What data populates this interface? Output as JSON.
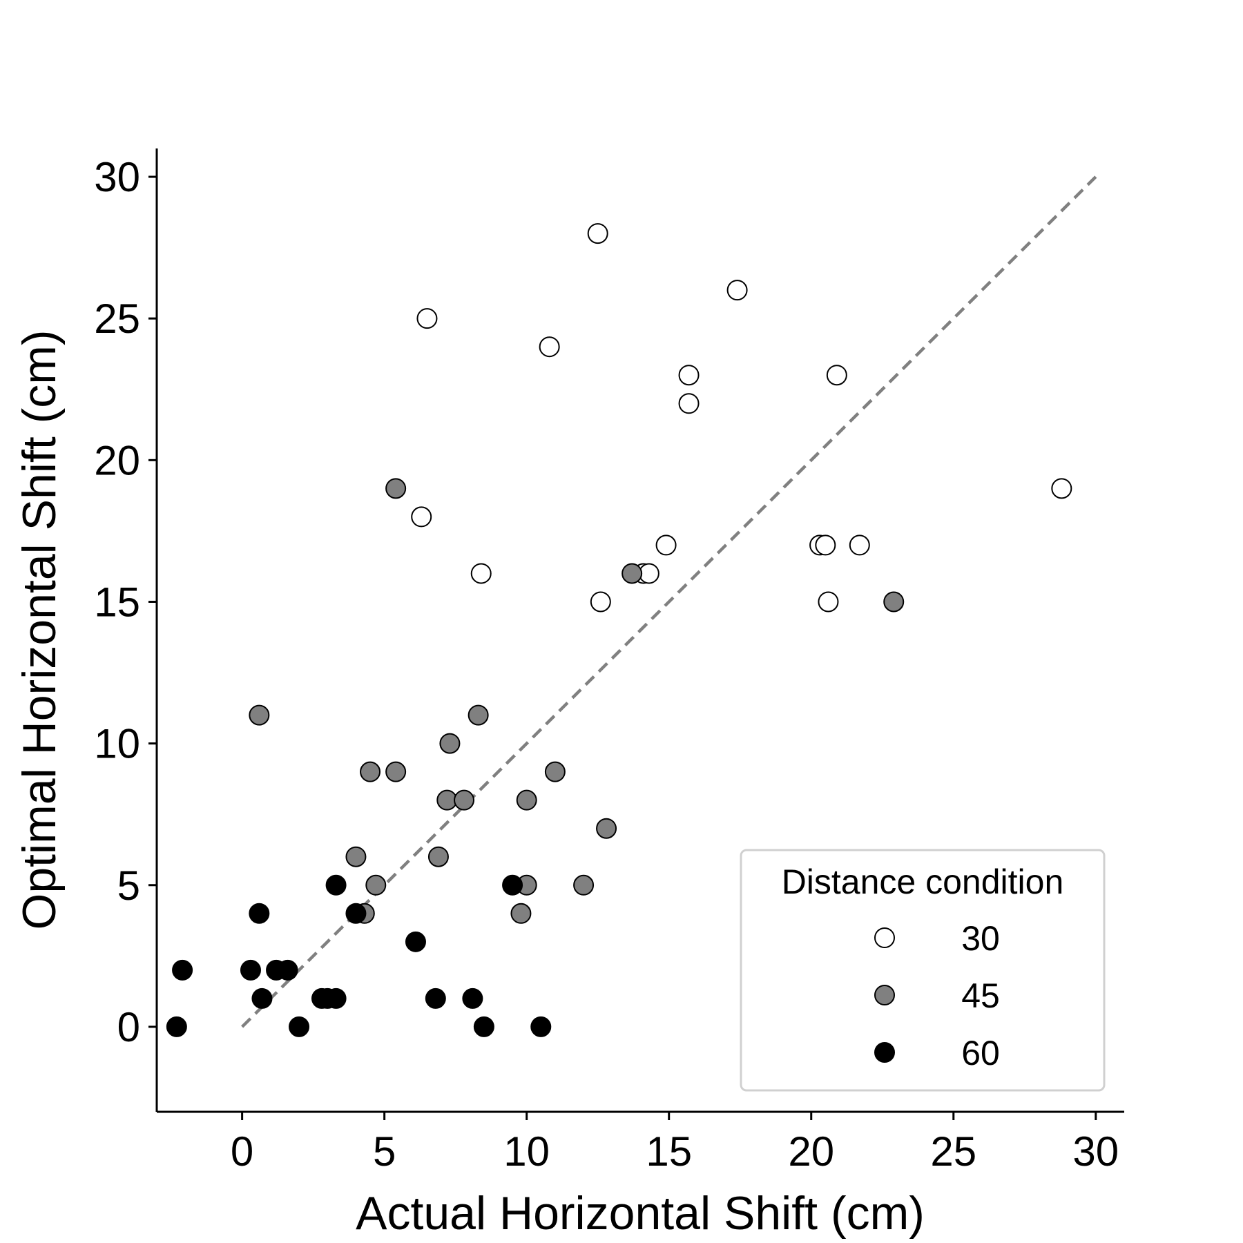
{
  "chart_data": {
    "type": "scatter",
    "title": "",
    "xlabel": "Actual Horizontal Shift (cm)",
    "ylabel": "Optimal Horizontal Shift (cm)",
    "xlim": [
      -3,
      31
    ],
    "ylim": [
      -3,
      31
    ],
    "xticks": [
      0,
      5,
      10,
      15,
      20,
      25,
      30
    ],
    "yticks": [
      0,
      5,
      10,
      15,
      20,
      25,
      30
    ],
    "grid": false,
    "reference_line": {
      "style": "dashed",
      "color": "#808080",
      "x": [
        0,
        30
      ],
      "y": [
        0,
        30
      ]
    },
    "legend": {
      "title": "Distance condition",
      "placement": "lower-right"
    },
    "series": [
      {
        "name": "30",
        "color": "#ffffff",
        "points": [
          [
            6.5,
            25
          ],
          [
            6.3,
            18
          ],
          [
            8.4,
            16
          ],
          [
            10.8,
            24
          ],
          [
            12.5,
            28
          ],
          [
            12.6,
            15
          ],
          [
            14.1,
            16
          ],
          [
            14.3,
            16
          ],
          [
            14.9,
            17
          ],
          [
            15.7,
            23
          ],
          [
            15.7,
            22
          ],
          [
            17.4,
            26
          ],
          [
            20.3,
            17
          ],
          [
            20.5,
            17
          ],
          [
            20.6,
            15
          ],
          [
            20.9,
            23
          ],
          [
            21.7,
            17
          ],
          [
            28.8,
            19
          ]
        ]
      },
      {
        "name": "45",
        "color": "#808080",
        "points": [
          [
            0.6,
            11
          ],
          [
            5.4,
            19
          ],
          [
            4.0,
            6
          ],
          [
            4.3,
            4
          ],
          [
            4.5,
            9
          ],
          [
            4.7,
            5
          ],
          [
            5.4,
            9
          ],
          [
            6.9,
            6
          ],
          [
            7.2,
            8
          ],
          [
            7.3,
            10
          ],
          [
            7.8,
            8
          ],
          [
            8.3,
            11
          ],
          [
            9.8,
            4
          ],
          [
            10.0,
            5
          ],
          [
            10.0,
            8
          ],
          [
            11.0,
            9
          ],
          [
            12.0,
            5
          ],
          [
            12.8,
            7
          ],
          [
            13.7,
            16
          ],
          [
            22.9,
            15
          ]
        ]
      },
      {
        "name": "60",
        "color": "#000000",
        "points": [
          [
            -2.3,
            0
          ],
          [
            -2.1,
            2
          ],
          [
            0.3,
            2
          ],
          [
            0.6,
            4
          ],
          [
            0.7,
            1
          ],
          [
            1.2,
            2
          ],
          [
            1.6,
            2
          ],
          [
            2.0,
            0
          ],
          [
            2.8,
            1
          ],
          [
            3.0,
            1
          ],
          [
            3.3,
            1
          ],
          [
            3.3,
            5
          ],
          [
            4.0,
            4
          ],
          [
            6.1,
            3
          ],
          [
            6.8,
            1
          ],
          [
            8.1,
            1
          ],
          [
            8.5,
            0
          ],
          [
            9.5,
            5
          ],
          [
            10.5,
            0
          ]
        ]
      }
    ]
  }
}
